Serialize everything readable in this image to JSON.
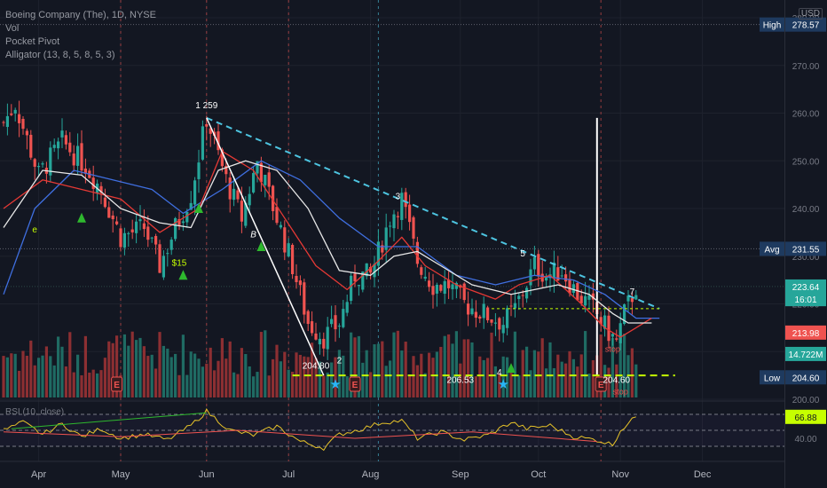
{
  "legend": {
    "title": "Boeing Company (The), 1D, NYSE",
    "vol": "Vol",
    "pocket_pivot": "Pocket Pivot",
    "alligator": "Alligator (13, 8, 5, 8, 5, 3)",
    "rsi": "RSI (10, close)"
  },
  "currency": "USD",
  "colors": {
    "background": "#131722",
    "up": "#26a69a",
    "down": "#ef5350",
    "vol_up": "#1f6b63",
    "vol_down": "#8c2f32",
    "ma_white": "#e8e8e8",
    "ma_red": "#e53935",
    "ma_blue": "#3f6fe0",
    "trend_line": "#4dc4e0",
    "support": "#c6ff00",
    "rsi": "#e6c229",
    "label_blue": "#1e3a5f"
  },
  "chart_data": {
    "type": "candlestick",
    "ylim": [
      200,
      280
    ],
    "y_ticks": [
      "280.00",
      "270.00",
      "260.00",
      "250.00",
      "240.00",
      "230.00",
      "220.00",
      "210.00",
      "200.00"
    ],
    "x_ticks": [
      "Apr",
      "May",
      "Jun",
      "Jul",
      "Aug",
      "Sep",
      "Oct",
      "Nov",
      "Dec"
    ],
    "x_tick_bars": [
      9,
      30,
      52,
      73,
      94,
      117,
      137,
      158,
      179
    ],
    "n_bars": 172,
    "price_pivots": [
      [
        0,
        258
      ],
      [
        3,
        262
      ],
      [
        9,
        247
      ],
      [
        15,
        254
      ],
      [
        21,
        249
      ],
      [
        25,
        244
      ],
      [
        30,
        234
      ],
      [
        36,
        236
      ],
      [
        40,
        228
      ],
      [
        44,
        236
      ],
      [
        48,
        243
      ],
      [
        52,
        259
      ],
      [
        57,
        246
      ],
      [
        61,
        238
      ],
      [
        65,
        250
      ],
      [
        70,
        238
      ],
      [
        74,
        228
      ],
      [
        78,
        216
      ],
      [
        82,
        213
      ],
      [
        86,
        216
      ],
      [
        90,
        226
      ],
      [
        94,
        226
      ],
      [
        99,
        238
      ],
      [
        102,
        242
      ],
      [
        106,
        229
      ],
      [
        110,
        224
      ],
      [
        114,
        224
      ],
      [
        118,
        220
      ],
      [
        123,
        218
      ],
      [
        128,
        216
      ],
      [
        131,
        219
      ],
      [
        136,
        228
      ],
      [
        139,
        226
      ],
      [
        143,
        227
      ],
      [
        147,
        222
      ],
      [
        151,
        219
      ],
      [
        155,
        214
      ],
      [
        157,
        212
      ],
      [
        159,
        218
      ],
      [
        162,
        223.64
      ]
    ],
    "lines": {
      "white_ma": [
        [
          0,
          236
        ],
        [
          10,
          248
        ],
        [
          20,
          247
        ],
        [
          30,
          240
        ],
        [
          40,
          237
        ],
        [
          48,
          236
        ],
        [
          55,
          248
        ],
        [
          62,
          250
        ],
        [
          70,
          248
        ],
        [
          78,
          240
        ],
        [
          86,
          227
        ],
        [
          94,
          226
        ],
        [
          100,
          230
        ],
        [
          106,
          231
        ],
        [
          112,
          228
        ],
        [
          120,
          224
        ],
        [
          130,
          222
        ],
        [
          136,
          223
        ],
        [
          142,
          224
        ],
        [
          150,
          222
        ],
        [
          156,
          218
        ],
        [
          160,
          216
        ],
        [
          166,
          216
        ]
      ],
      "red_ma": [
        [
          0,
          240
        ],
        [
          10,
          246
        ],
        [
          20,
          244
        ],
        [
          30,
          242
        ],
        [
          40,
          235
        ],
        [
          50,
          240
        ],
        [
          56,
          252
        ],
        [
          64,
          248
        ],
        [
          72,
          238
        ],
        [
          80,
          228
        ],
        [
          88,
          223
        ],
        [
          96,
          229
        ],
        [
          102,
          234
        ],
        [
          108,
          228
        ],
        [
          116,
          224
        ],
        [
          126,
          221
        ],
        [
          132,
          224
        ],
        [
          140,
          226
        ],
        [
          148,
          220
        ],
        [
          154,
          215
        ],
        [
          158,
          213
        ],
        [
          162,
          215
        ],
        [
          166,
          217
        ]
      ],
      "blue_ma": [
        [
          0,
          222
        ],
        [
          8,
          240
        ],
        [
          18,
          248
        ],
        [
          28,
          246
        ],
        [
          38,
          244
        ],
        [
          46,
          239
        ],
        [
          56,
          244
        ],
        [
          66,
          250
        ],
        [
          76,
          246
        ],
        [
          86,
          238
        ],
        [
          96,
          232
        ],
        [
          106,
          232
        ],
        [
          116,
          226
        ],
        [
          126,
          224
        ],
        [
          136,
          226
        ],
        [
          146,
          225
        ],
        [
          154,
          222
        ],
        [
          162,
          217
        ],
        [
          168,
          217
        ]
      ]
    },
    "annotations": {
      "trendline_from": [
        52,
        259
      ],
      "trendline_to": [
        168,
        219
      ],
      "downline_from": [
        52,
        259
      ],
      "downline_to": [
        82,
        205
      ],
      "support_level": 205,
      "support_from": 74,
      "support_to": 172,
      "resistance_level": 219,
      "resistance_from": 125,
      "resistance_to": 168,
      "breakout_bar_index": 152,
      "breakout_spike_top": 259
    },
    "labels": [
      {
        "text": "1 259",
        "bar": 52,
        "price": 261
      },
      {
        "text": "3",
        "bar": 101,
        "price": 242
      },
      {
        "text": "5",
        "bar": 133,
        "price": 230
      },
      {
        "text": "B",
        "bar": 64,
        "price": 234
      },
      {
        "text": "7",
        "bar": 161,
        "price": 222
      },
      {
        "text": "204.80",
        "bar": 80,
        "price": 206.4
      },
      {
        "text": "2",
        "bar": 86,
        "price": 207.5
      },
      {
        "text": "206.53",
        "bar": 117,
        "price": 203.4
      },
      {
        "text": "4",
        "bar": 127,
        "price": 205
      },
      {
        "text": "204.60",
        "bar": 157,
        "price": 203.4
      },
      {
        "text": "$15",
        "bar": 45,
        "price": 228
      },
      {
        "text": "e",
        "bar": 8,
        "price": 235
      },
      {
        "text": "stop",
        "bar": 156,
        "price": 210
      },
      {
        "text": "stop",
        "bar": 158,
        "price": 201
      }
    ],
    "pivot_triangles": [
      {
        "bar": 20,
        "price": 238
      },
      {
        "bar": 50,
        "price": 240
      },
      {
        "bar": 46,
        "price": 226
      },
      {
        "bar": 66,
        "price": 232
      },
      {
        "bar": 130,
        "price": 206.5
      }
    ],
    "earnings_bars": [
      29,
      90,
      153
    ],
    "star_bars": [
      85,
      128
    ],
    "price_labels": [
      {
        "label": "High",
        "value": "278.57",
        "price": 278.57,
        "color": "#1e3a5f"
      },
      {
        "label": "Avg",
        "value": "231.55",
        "price": 231.55,
        "color": "#1e3a5f"
      },
      {
        "label": "",
        "value": "223.64",
        "price": 223.64,
        "color": "#26a69a"
      },
      {
        "label": "",
        "value": "16:01",
        "price": 221.0,
        "color": "#26a69a"
      },
      {
        "label": "",
        "value": "213.98",
        "price": 213.98,
        "color": "#ef5350"
      },
      {
        "label": "",
        "value": "14.722M",
        "price": 209.5,
        "color": "#26a69a"
      },
      {
        "label": "Low",
        "value": "204.60",
        "price": 204.6,
        "color": "#1e3a5f"
      }
    ],
    "rsi": {
      "ylim": [
        20,
        80
      ],
      "ticks": [
        "40.00"
      ],
      "current": "66.88",
      "pivots": [
        [
          0,
          50
        ],
        [
          5,
          60
        ],
        [
          10,
          45
        ],
        [
          15,
          58
        ],
        [
          20,
          42
        ],
        [
          25,
          52
        ],
        [
          30,
          40
        ],
        [
          36,
          45
        ],
        [
          42,
          38
        ],
        [
          48,
          56
        ],
        [
          52,
          74
        ],
        [
          58,
          50
        ],
        [
          64,
          44
        ],
        [
          70,
          55
        ],
        [
          76,
          36
        ],
        [
          82,
          28
        ],
        [
          86,
          45
        ],
        [
          92,
          52
        ],
        [
          97,
          60
        ],
        [
          102,
          62
        ],
        [
          106,
          40
        ],
        [
          112,
          48
        ],
        [
          118,
          38
        ],
        [
          124,
          44
        ],
        [
          130,
          60
        ],
        [
          134,
          52
        ],
        [
          140,
          56
        ],
        [
          146,
          42
        ],
        [
          152,
          38
        ],
        [
          156,
          32
        ],
        [
          158,
          50
        ],
        [
          162,
          66.88
        ]
      ],
      "levels": [
        70,
        50,
        30
      ]
    }
  }
}
